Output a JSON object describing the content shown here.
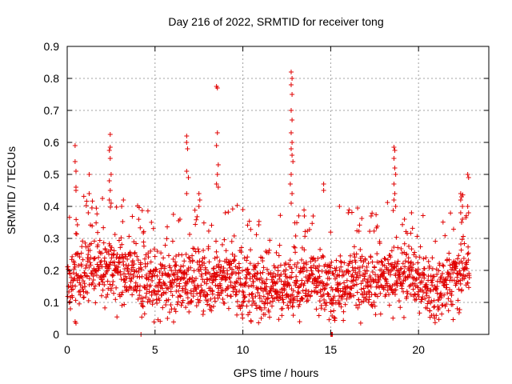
{
  "chart_data": {
    "type": "scatter",
    "title": "Day 216 of 2022, SRMTID for receiver tong",
    "xlabel": "GPS time / hours",
    "ylabel": "SRMTID / TECUs",
    "xlim": [
      0,
      24
    ],
    "ylim": [
      0,
      0.9
    ],
    "x_ticks": [
      0,
      5,
      10,
      15,
      20
    ],
    "x_tick_labels": [
      "0",
      "5",
      "10",
      "15",
      "20"
    ],
    "y_ticks": [
      0,
      0.1,
      0.2,
      0.3,
      0.4,
      0.5,
      0.6,
      0.7,
      0.8,
      0.9
    ],
    "y_tick_labels": [
      "0",
      "0.1",
      "0.2",
      "0.3",
      "0.4",
      "0.5",
      "0.6",
      "0.7",
      "0.8",
      "0.9"
    ],
    "grid": true,
    "marker": "+",
    "color": "#e00000",
    "series": [
      {
        "name": "SRMTID",
        "baseline": [
          [
            0.0,
            0.16
          ],
          [
            0.5,
            0.2
          ],
          [
            1.0,
            0.22
          ],
          [
            2.0,
            0.2
          ],
          [
            3.0,
            0.21
          ],
          [
            4.0,
            0.19
          ],
          [
            5.0,
            0.15
          ],
          [
            6.0,
            0.16
          ],
          [
            7.0,
            0.17
          ],
          [
            8.0,
            0.16
          ],
          [
            9.0,
            0.17
          ],
          [
            10.0,
            0.16
          ],
          [
            11.0,
            0.15
          ],
          [
            12.0,
            0.15
          ],
          [
            13.0,
            0.16
          ],
          [
            14.0,
            0.17
          ],
          [
            15.0,
            0.14
          ],
          [
            16.0,
            0.17
          ],
          [
            17.0,
            0.16
          ],
          [
            18.0,
            0.18
          ],
          [
            19.0,
            0.19
          ],
          [
            20.0,
            0.18
          ],
          [
            20.6,
            0.13
          ],
          [
            21.0,
            0.12
          ],
          [
            22.0,
            0.17
          ],
          [
            22.5,
            0.2
          ],
          [
            22.9,
            0.22
          ]
        ],
        "spikes": [
          [
            0.45,
            0.59
          ],
          [
            0.45,
            0.54
          ],
          [
            0.5,
            0.51
          ],
          [
            0.5,
            0.46
          ],
          [
            0.5,
            0.45
          ],
          [
            1.25,
            0.5
          ],
          [
            1.25,
            0.44
          ],
          [
            1.2,
            0.38
          ],
          [
            2.45,
            0.625
          ],
          [
            2.45,
            0.585
          ],
          [
            2.4,
            0.575
          ],
          [
            2.45,
            0.55
          ],
          [
            2.5,
            0.5
          ],
          [
            2.4,
            0.48
          ],
          [
            2.45,
            0.45
          ],
          [
            2.4,
            0.42
          ],
          [
            2.5,
            0.41
          ],
          [
            3.2,
            0.42
          ],
          [
            3.1,
            0.4
          ],
          [
            6.8,
            0.62
          ],
          [
            6.8,
            0.6
          ],
          [
            6.85,
            0.58
          ],
          [
            6.8,
            0.51
          ],
          [
            6.9,
            0.49
          ],
          [
            6.8,
            0.44
          ],
          [
            7.5,
            0.44
          ],
          [
            7.55,
            0.42
          ],
          [
            7.5,
            0.4
          ],
          [
            8.5,
            0.775
          ],
          [
            8.55,
            0.77
          ],
          [
            8.55,
            0.63
          ],
          [
            8.5,
            0.59
          ],
          [
            8.6,
            0.53
          ],
          [
            8.55,
            0.5
          ],
          [
            8.5,
            0.47
          ],
          [
            8.6,
            0.46
          ],
          [
            9.0,
            0.38
          ],
          [
            10.0,
            0.39
          ],
          [
            12.75,
            0.82
          ],
          [
            12.8,
            0.8
          ],
          [
            12.75,
            0.78
          ],
          [
            12.8,
            0.75
          ],
          [
            12.75,
            0.7
          ],
          [
            12.8,
            0.67
          ],
          [
            12.75,
            0.63
          ],
          [
            12.8,
            0.6
          ],
          [
            12.75,
            0.58
          ],
          [
            12.8,
            0.56
          ],
          [
            12.85,
            0.54
          ],
          [
            12.75,
            0.5
          ],
          [
            12.7,
            0.47
          ],
          [
            12.8,
            0.44
          ],
          [
            12.75,
            0.41
          ],
          [
            13.5,
            0.37
          ],
          [
            14.0,
            0.37
          ],
          [
            14.6,
            0.47
          ],
          [
            14.6,
            0.45
          ],
          [
            15.5,
            0.4
          ],
          [
            16.0,
            0.38
          ],
          [
            17.3,
            0.37
          ],
          [
            18.6,
            0.585
          ],
          [
            18.65,
            0.575
          ],
          [
            18.6,
            0.55
          ],
          [
            18.65,
            0.52
          ],
          [
            18.7,
            0.5
          ],
          [
            18.6,
            0.47
          ],
          [
            18.65,
            0.44
          ],
          [
            18.6,
            0.42
          ],
          [
            18.7,
            0.4
          ],
          [
            19.2,
            0.36
          ],
          [
            19.6,
            0.38
          ],
          [
            22.4,
            0.44
          ],
          [
            22.45,
            0.43
          ],
          [
            22.4,
            0.42
          ],
          [
            22.5,
            0.4
          ],
          [
            22.4,
            0.38
          ],
          [
            22.5,
            0.36
          ],
          [
            22.45,
            0.35
          ],
          [
            22.8,
            0.5
          ],
          [
            22.85,
            0.49
          ],
          [
            22.8,
            0.4
          ],
          [
            22.85,
            0.38
          ]
        ],
        "low_points": [
          [
            0.45,
            0.04
          ],
          [
            0.5,
            0.035
          ],
          [
            4.2,
            0.0
          ],
          [
            15.0,
            0.0
          ],
          [
            15.05,
            0.0
          ],
          [
            15.1,
            0.0
          ]
        ]
      }
    ]
  }
}
